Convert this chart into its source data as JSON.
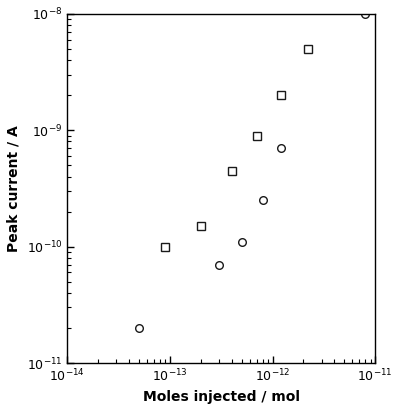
{
  "title": "",
  "xlabel": "Moles injected / mol",
  "ylabel": "Peak current / A",
  "xlim": [
    1e-14,
    1e-11
  ],
  "ylim": [
    1e-11,
    1e-08
  ],
  "circles_x": [
    5e-14,
    3e-13,
    5e-13,
    8e-13,
    1.2e-12,
    8e-12
  ],
  "circles_y": [
    2e-11,
    7e-11,
    1.1e-10,
    2.5e-10,
    7e-10,
    1e-08
  ],
  "squares_x": [
    9e-14,
    2e-13,
    4e-13,
    7e-13,
    1.2e-12,
    2.2e-12
  ],
  "squares_y": [
    1e-10,
    1.5e-10,
    4.5e-10,
    9e-10,
    2e-09,
    5e-09
  ],
  "marker_color": "#1a1a1a",
  "marker_size": 5.5,
  "face_color": "white",
  "background_color": "white",
  "tick_labelsize": 9,
  "label_fontsize": 10
}
